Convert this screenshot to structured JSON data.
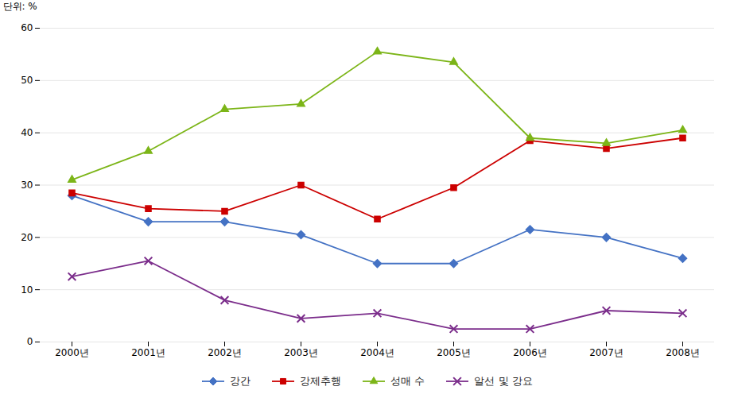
{
  "chart_data": {
    "type": "line",
    "ylabel": "단위: %",
    "categories": [
      "2000년",
      "2001년",
      "2002년",
      "2003년",
      "2004년",
      "2005년",
      "2006년",
      "2007년",
      "2008년"
    ],
    "series": [
      {
        "name": "강간",
        "values": [
          28.0,
          23.0,
          23.0,
          20.5,
          15.0,
          15.0,
          21.5,
          20.0,
          16.0
        ],
        "color": "#4472C4",
        "marker": "diamond"
      },
      {
        "name": "강제추행",
        "values": [
          28.5,
          25.5,
          25.0,
          30.0,
          23.5,
          29.5,
          38.5,
          37.0,
          39.0
        ],
        "color": "#CC0000",
        "marker": "square"
      },
      {
        "name": "성매 수",
        "values": [
          31.0,
          36.5,
          44.5,
          45.5,
          55.5,
          53.5,
          39.0,
          38.0,
          40.5
        ],
        "color": "#7CB518",
        "marker": "triangle"
      },
      {
        "name": "알선 및 강요",
        "values": [
          12.5,
          15.5,
          8.0,
          4.5,
          5.5,
          2.5,
          2.5,
          6.0,
          5.5
        ],
        "color": "#7B2D8B",
        "marker": "x"
      }
    ],
    "ylim": [
      0,
      60
    ],
    "yticks": [
      0,
      10,
      20,
      30,
      40,
      50,
      60
    ],
    "grid": true,
    "legend": "bottom"
  }
}
